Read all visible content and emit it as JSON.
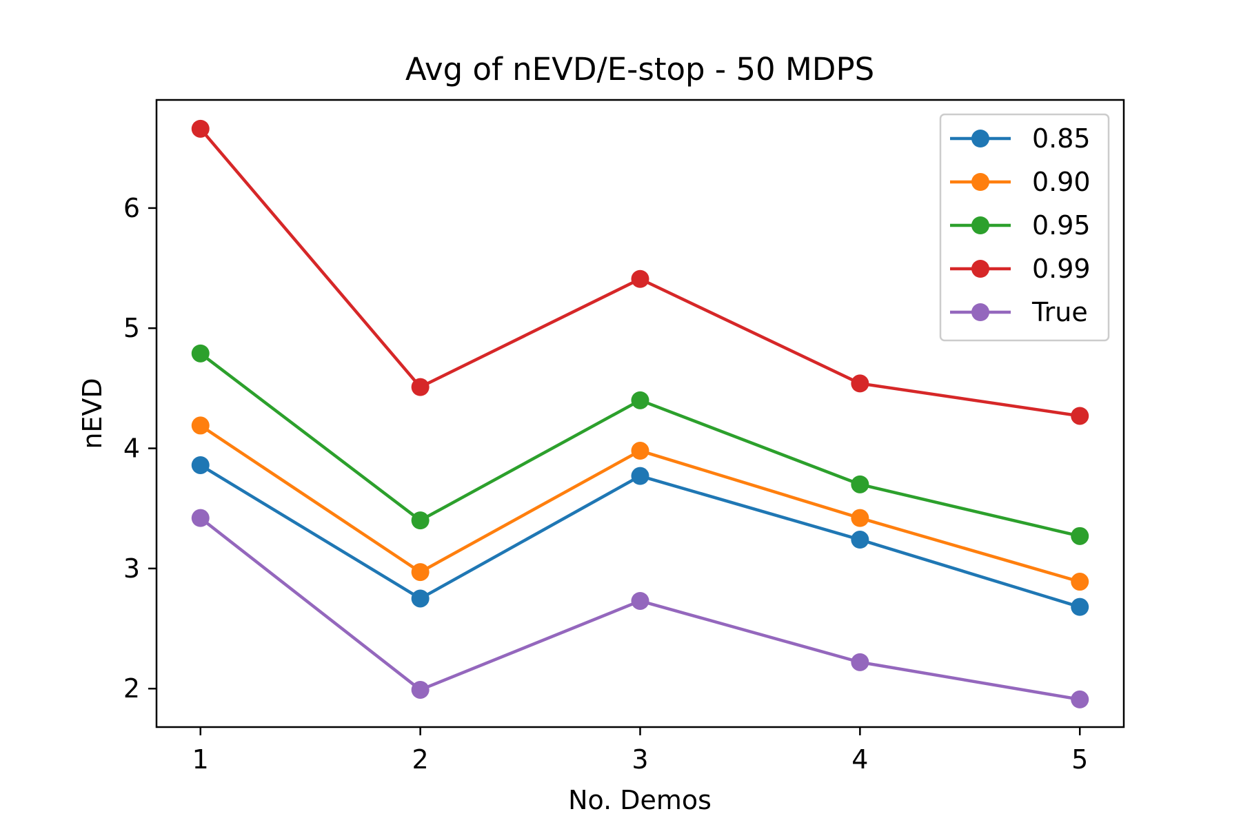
{
  "chart_data": {
    "type": "line",
    "title": "Avg of nEVD/E-stop - 50 MDPS",
    "xlabel": "No. Demos",
    "ylabel": "nEVD",
    "x": [
      1,
      2,
      3,
      4,
      5
    ],
    "xticks": [
      "1",
      "2",
      "3",
      "4",
      "5"
    ],
    "yticks": [
      "2",
      "3",
      "4",
      "5",
      "6"
    ],
    "xlim": [
      0.8,
      5.2
    ],
    "ylim": [
      1.68,
      6.9
    ],
    "grid": false,
    "legend_position": "top-right",
    "series": [
      {
        "name": "0.85",
        "color": "#1f77b4",
        "values": [
          3.86,
          2.75,
          3.77,
          3.24,
          2.68
        ]
      },
      {
        "name": "0.90",
        "color": "#ff7f0e",
        "values": [
          4.19,
          2.97,
          3.98,
          3.42,
          2.89
        ]
      },
      {
        "name": "0.95",
        "color": "#2ca02c",
        "values": [
          4.79,
          3.4,
          4.4,
          3.7,
          3.27
        ]
      },
      {
        "name": "0.99",
        "color": "#d62728",
        "values": [
          6.66,
          4.51,
          5.41,
          4.54,
          4.27
        ]
      },
      {
        "name": "True",
        "color": "#9467bd",
        "values": [
          3.42,
          1.99,
          2.73,
          2.22,
          1.91
        ]
      }
    ]
  }
}
